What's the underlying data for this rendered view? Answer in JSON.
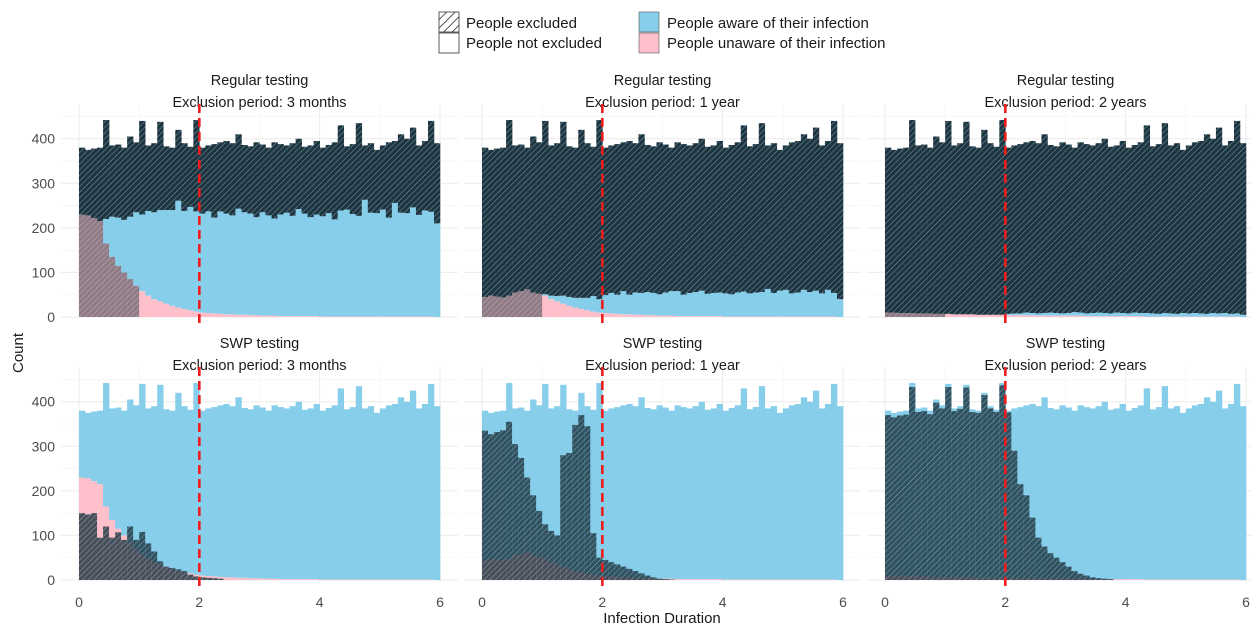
{
  "legend": {
    "excluded": "People excluded",
    "not_excluded": "People not excluded",
    "aware": "People aware of their infection",
    "unaware": "People unaware of their infection"
  },
  "colors": {
    "aware": "#87ceeb",
    "unaware": "#ffc0cb",
    "hatch_dark": "#1d3540",
    "threshold": "#ee1c1c",
    "grid": "#ebebeb"
  },
  "chart_data": {
    "type": "bar",
    "subtype": "stacked histogram facet grid",
    "xlabel": "Infection Duration",
    "ylabel": "Count",
    "xlim": [
      0,
      6
    ],
    "ylim": [
      0,
      460
    ],
    "x_ticks": [
      0,
      2,
      4,
      6
    ],
    "y_ticks": [
      0,
      100,
      200,
      300,
      400
    ],
    "bin_width": 0.1,
    "threshold_x": 2,
    "grid": true,
    "legend_position": "top",
    "totals": [
      380,
      375,
      378,
      380,
      442,
      385,
      387,
      380,
      405,
      392,
      440,
      385,
      390,
      438,
      383,
      380,
      420,
      390,
      382,
      442,
      380,
      385,
      388,
      392,
      395,
      390,
      410,
      386,
      383,
      392,
      387,
      380,
      392,
      388,
      385,
      390,
      400,
      382,
      385,
      395,
      380,
      386,
      392,
      430,
      383,
      388,
      435,
      385,
      390,
      375,
      385,
      392,
      395,
      410,
      400,
      425,
      385,
      395,
      440,
      390
    ],
    "panels": [
      {
        "row_label": "Regular testing",
        "col_label": "Exclusion period: 3 months",
        "exclusion_years": 0.25,
        "unaware": [
          230,
          228,
          222,
          215,
          165,
          135,
          115,
          100,
          85,
          70,
          58,
          48,
          40,
          35,
          30,
          25,
          21,
          18,
          15,
          12,
          10,
          9,
          8,
          7,
          6,
          6,
          5,
          5,
          4,
          4,
          3,
          3,
          3,
          2,
          2,
          2,
          2,
          2,
          2,
          2,
          1,
          1,
          1,
          1,
          1,
          1,
          1,
          1,
          1,
          1,
          1,
          1,
          1,
          1,
          1,
          1,
          1,
          1,
          1,
          0
        ],
        "aware": [
          0,
          0,
          0,
          0,
          55,
          90,
          108,
          118,
          140,
          165,
          172,
          190,
          195,
          205,
          210,
          215,
          240,
          220,
          232,
          225,
          222,
          228,
          215,
          230,
          226,
          222,
          238,
          230,
          228,
          220,
          232,
          225,
          218,
          228,
          232,
          225,
          240,
          230,
          222,
          228,
          225,
          232,
          218,
          238,
          240,
          230,
          226,
          262,
          233,
          232,
          240,
          222,
          255,
          233,
          232,
          245,
          228,
          238,
          235,
          210
        ],
        "excluded_from_bin": 3,
        "excluded_count": null
      },
      {
        "row_label": "Regular testing",
        "col_label": "Exclusion period: 1 year",
        "exclusion_years": 1,
        "unaware": [
          45,
          48,
          46,
          44,
          48,
          55,
          58,
          62,
          55,
          52,
          48,
          40,
          35,
          30,
          25,
          21,
          18,
          15,
          12,
          10,
          9,
          8,
          7,
          6,
          6,
          5,
          5,
          4,
          4,
          3,
          3,
          3,
          2,
          2,
          2,
          2,
          2,
          2,
          2,
          2,
          1,
          1,
          1,
          1,
          1,
          1,
          1,
          1,
          1,
          1,
          1,
          1,
          1,
          1,
          1,
          1,
          1,
          1,
          1,
          0
        ],
        "aware": [
          0,
          0,
          0,
          0,
          0,
          0,
          0,
          0,
          0,
          0,
          3,
          8,
          12,
          18,
          20,
          22,
          25,
          28,
          35,
          30,
          40,
          46,
          43,
          52,
          44,
          50,
          49,
          52,
          50,
          48,
          52,
          55,
          56,
          48,
          52,
          54,
          57,
          50,
          52,
          53,
          52,
          50,
          54,
          56,
          52,
          54,
          55,
          62,
          53,
          58,
          60,
          52,
          54,
          60,
          55,
          58,
          52,
          60,
          53,
          40
        ],
        "excluded_from_bin": 0,
        "excluded_count": null
      },
      {
        "row_label": "Regular testing",
        "col_label": "Exclusion period: 2 years",
        "exclusion_years": 2,
        "unaware": [
          10,
          10,
          9,
          9,
          9,
          8,
          8,
          8,
          7,
          7,
          7,
          6,
          6,
          6,
          6,
          5,
          5,
          5,
          5,
          5,
          4,
          4,
          4,
          4,
          4,
          3,
          3,
          3,
          3,
          3,
          3,
          3,
          3,
          2,
          2,
          2,
          2,
          2,
          2,
          2,
          2,
          2,
          2,
          1,
          1,
          1,
          1,
          1,
          1,
          1,
          1,
          1,
          1,
          1,
          1,
          1,
          1,
          1,
          1,
          0
        ],
        "aware": [
          0,
          0,
          0,
          0,
          0,
          0,
          0,
          0,
          0,
          0,
          0,
          0,
          0,
          0,
          0,
          0,
          0,
          0,
          0,
          0,
          3,
          4,
          4,
          6,
          5,
          5,
          6,
          7,
          6,
          5,
          6,
          8,
          7,
          6,
          7,
          8,
          7,
          6,
          8,
          7,
          6,
          8,
          7,
          8,
          7,
          6,
          8,
          7,
          6,
          8,
          7,
          8,
          7,
          6,
          8,
          7,
          8,
          6,
          7,
          5
        ],
        "excluded_from_bin": 0,
        "excluded_count": null
      },
      {
        "row_label": "SWP testing",
        "col_label": "Exclusion period: 3 months",
        "exclusion_years": 0.25,
        "unaware": [
          230,
          228,
          222,
          215,
          165,
          135,
          115,
          100,
          85,
          70,
          58,
          48,
          40,
          35,
          30,
          25,
          21,
          18,
          15,
          12,
          10,
          9,
          8,
          7,
          6,
          6,
          5,
          5,
          4,
          4,
          3,
          3,
          3,
          2,
          2,
          2,
          2,
          2,
          2,
          2,
          1,
          1,
          1,
          1,
          1,
          1,
          1,
          1,
          1,
          1,
          1,
          1,
          1,
          1,
          1,
          1,
          1,
          1,
          1,
          0
        ],
        "aware": [
          0,
          0,
          0,
          0,
          0,
          0,
          0,
          0,
          0,
          0,
          0,
          0,
          0,
          0,
          0,
          0,
          0,
          0,
          0,
          0,
          0,
          0,
          0,
          0,
          0,
          0,
          0,
          0,
          0,
          0,
          0,
          0,
          0,
          0,
          0,
          0,
          0,
          0,
          0,
          0,
          0,
          0,
          0,
          0,
          0,
          0,
          0,
          0,
          0,
          0,
          0,
          0,
          0,
          0,
          0,
          0,
          0,
          0,
          0,
          0
        ],
        "excluded_from_bin": null,
        "excluded_count": [
          150,
          147,
          150,
          95,
          120,
          95,
          107,
          90,
          120,
          90,
          108,
          82,
          64,
          42,
          30,
          27,
          24,
          20,
          12,
          8,
          6,
          5,
          4,
          3,
          0,
          0,
          0,
          0,
          0,
          0,
          0,
          0,
          0,
          0,
          0,
          0,
          0,
          0,
          0,
          0,
          0,
          0,
          0,
          0,
          0,
          0,
          0,
          0,
          0,
          0,
          0,
          0,
          0,
          0,
          0,
          0,
          0,
          0,
          0,
          0
        ]
      },
      {
        "row_label": "SWP testing",
        "col_label": "Exclusion period: 1 year",
        "exclusion_years": 1,
        "unaware": [
          45,
          48,
          46,
          44,
          48,
          55,
          58,
          62,
          55,
          52,
          48,
          40,
          35,
          30,
          25,
          21,
          18,
          15,
          12,
          10,
          9,
          8,
          7,
          6,
          6,
          5,
          5,
          4,
          4,
          3,
          3,
          3,
          2,
          2,
          2,
          2,
          2,
          2,
          2,
          2,
          1,
          1,
          1,
          1,
          1,
          1,
          1,
          1,
          1,
          1,
          1,
          1,
          1,
          1,
          1,
          1,
          1,
          1,
          1,
          0
        ],
        "aware": [
          0,
          0,
          0,
          0,
          0,
          0,
          0,
          0,
          0,
          0,
          0,
          0,
          0,
          0,
          0,
          0,
          0,
          0,
          0,
          0,
          0,
          0,
          0,
          0,
          0,
          0,
          0,
          0,
          0,
          0,
          0,
          0,
          0,
          0,
          0,
          0,
          0,
          0,
          0,
          0,
          0,
          0,
          0,
          0,
          0,
          0,
          0,
          0,
          0,
          0,
          0,
          0,
          0,
          0,
          0,
          0,
          0,
          0,
          0,
          0
        ],
        "excluded_from_bin": null,
        "excluded_count": [
          335,
          327,
          332,
          336,
          355,
          305,
          274,
          230,
          190,
          155,
          125,
          110,
          100,
          280,
          285,
          348,
          370,
          345,
          105,
          50,
          45,
          40,
          35,
          30,
          25,
          20,
          15,
          10,
          6,
          3,
          2,
          1,
          0,
          0,
          0,
          0,
          0,
          0,
          0,
          0,
          0,
          0,
          0,
          0,
          0,
          0,
          0,
          0,
          0,
          0,
          0,
          0,
          0,
          0,
          0,
          0,
          0,
          0,
          0,
          0
        ]
      },
      {
        "row_label": "SWP testing",
        "col_label": "Exclusion period: 2 years",
        "exclusion_years": 2,
        "unaware": [
          10,
          10,
          9,
          9,
          9,
          8,
          8,
          8,
          7,
          7,
          7,
          6,
          6,
          6,
          6,
          5,
          5,
          5,
          5,
          5,
          4,
          4,
          4,
          4,
          4,
          3,
          3,
          3,
          3,
          3,
          3,
          3,
          3,
          2,
          2,
          2,
          2,
          2,
          2,
          2,
          2,
          2,
          2,
          1,
          1,
          1,
          1,
          1,
          1,
          1,
          1,
          1,
          1,
          1,
          1,
          1,
          1,
          1,
          1,
          0
        ],
        "aware": [
          0,
          0,
          0,
          0,
          0,
          0,
          0,
          0,
          0,
          0,
          0,
          0,
          0,
          0,
          0,
          0,
          0,
          0,
          0,
          0,
          0,
          0,
          0,
          0,
          0,
          0,
          0,
          0,
          0,
          0,
          0,
          0,
          0,
          0,
          0,
          0,
          0,
          0,
          0,
          0,
          0,
          0,
          0,
          0,
          0,
          0,
          0,
          0,
          0,
          0,
          0,
          0,
          0,
          0,
          0,
          0,
          0,
          0,
          0,
          0
        ],
        "excluded_from_bin": null,
        "excluded_count": [
          370,
          365,
          369,
          371,
          433,
          377,
          379,
          372,
          398,
          385,
          433,
          379,
          384,
          432,
          377,
          375,
          415,
          385,
          377,
          437,
          376,
          290,
          215,
          190,
          140,
          95,
          75,
          60,
          50,
          40,
          30,
          20,
          14,
          10,
          6,
          4,
          3,
          2,
          0,
          0,
          0,
          0,
          0,
          0,
          0,
          0,
          0,
          0,
          0,
          0,
          0,
          0,
          0,
          0,
          0,
          0,
          0,
          0,
          0,
          0
        ]
      }
    ]
  }
}
